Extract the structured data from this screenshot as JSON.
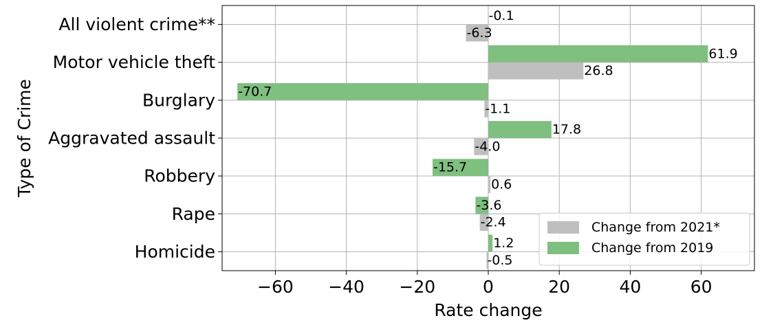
{
  "chart_data": {
    "type": "bar",
    "orientation": "horizontal",
    "categories": [
      "Homicide",
      "Rape",
      "Robbery",
      "Aggravated assault",
      "Burglary",
      "Motor vehicle theft",
      "All violent crime**"
    ],
    "series": [
      {
        "name": "Change from 2021*",
        "color": "#bfbfbf",
        "values": [
          -0.5,
          -2.4,
          0.6,
          -4.0,
          -1.1,
          26.8,
          -6.3
        ],
        "labels": [
          "-0.5",
          "-2.4",
          "0.6",
          "-4.0",
          "-1.1",
          "26.8",
          "-6.3"
        ]
      },
      {
        "name": "Change from 2019",
        "color": "#7fbf7f",
        "values": [
          1.2,
          -3.6,
          -15.7,
          17.8,
          -70.7,
          61.9,
          -0.1
        ],
        "labels": [
          "1.2",
          "-3.6",
          "-15.7",
          "17.8",
          "-70.7",
          "61.9",
          "-0.1"
        ]
      }
    ],
    "xlabel": "Rate change",
    "ylabel": "Type of Crime",
    "xlim": [
      -75,
      75
    ],
    "xticks": [
      -60,
      -40,
      -20,
      0,
      20,
      40,
      60
    ],
    "xtick_labels": [
      "−60",
      "−40",
      "−20",
      "0",
      "20",
      "40",
      "60"
    ],
    "grid": true,
    "legend": "lower-right"
  }
}
